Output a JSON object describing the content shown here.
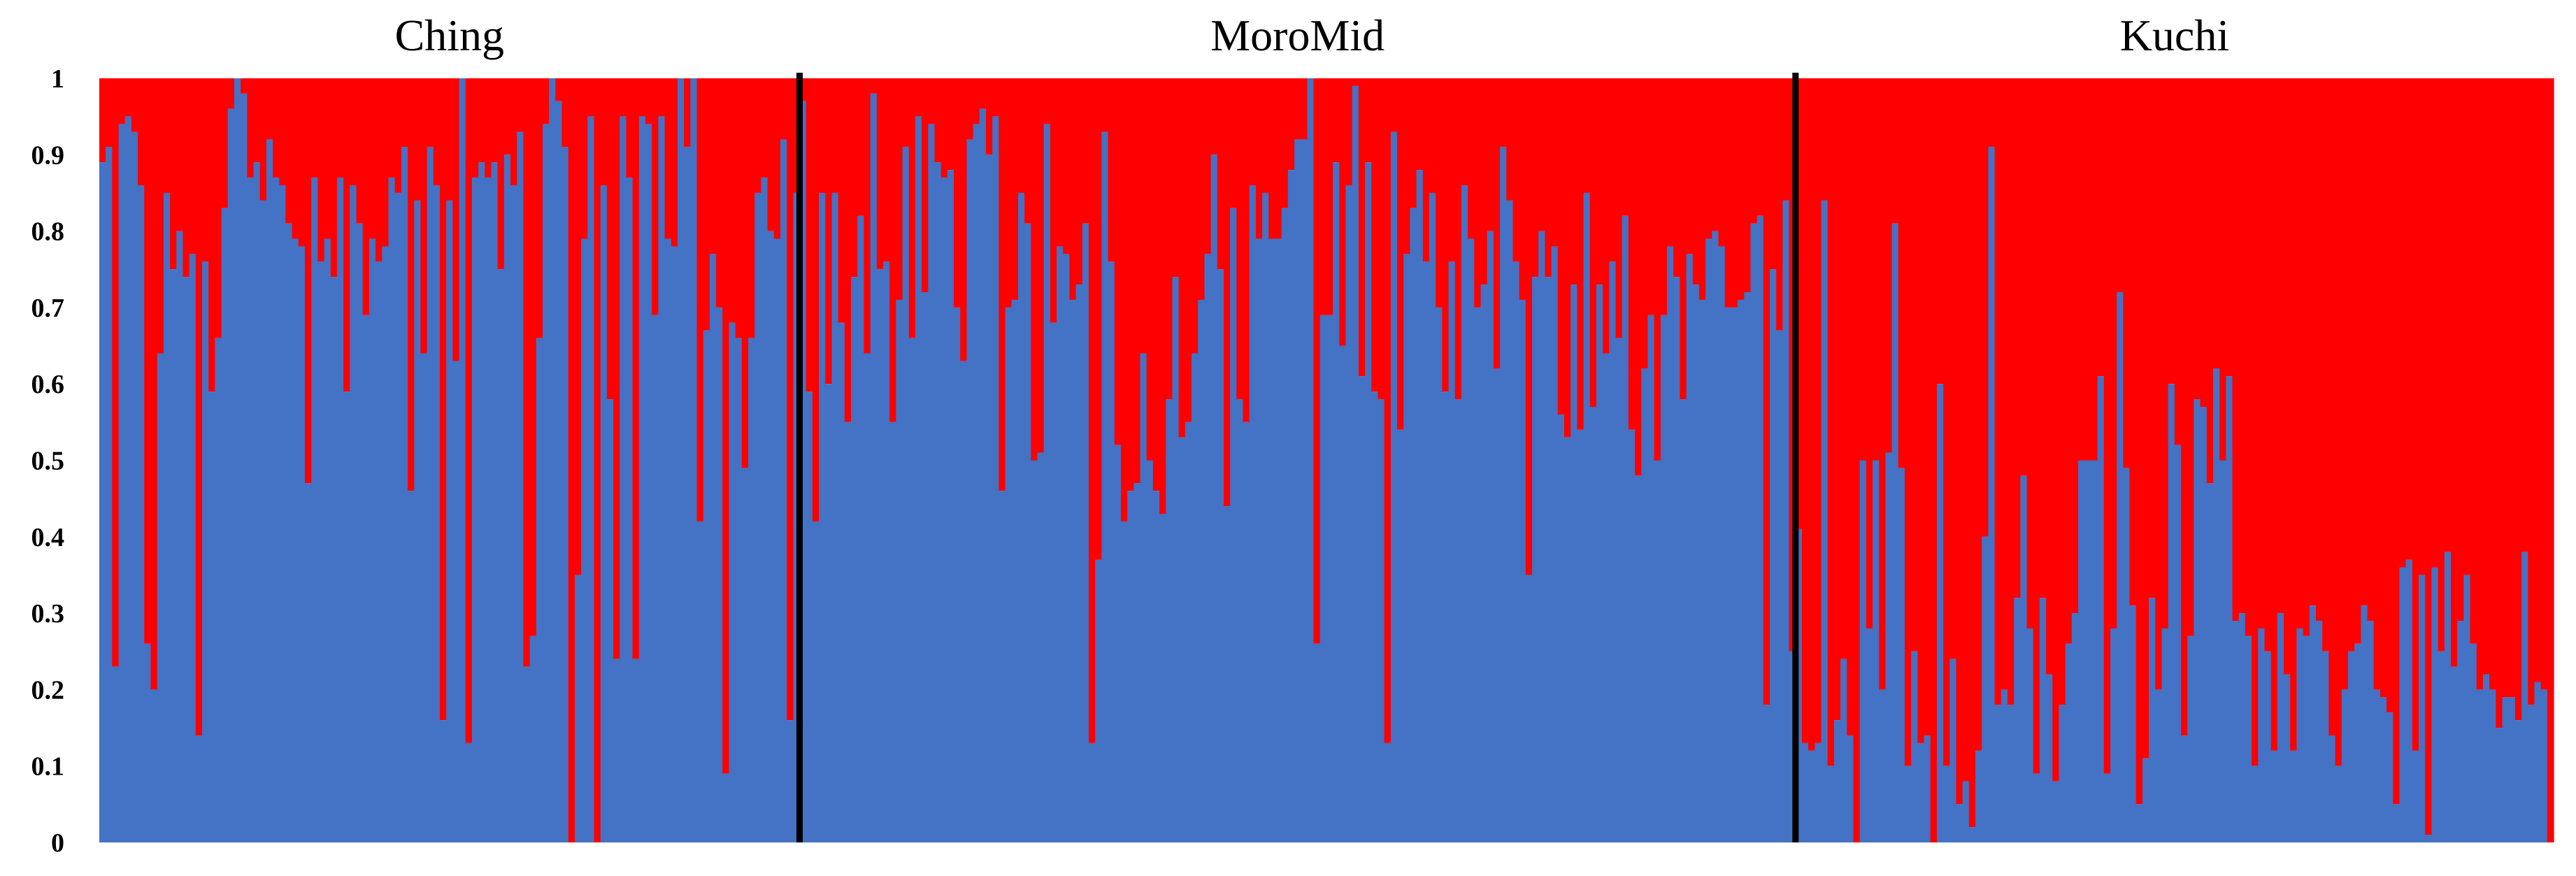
{
  "chart_data": {
    "type": "bar",
    "stacked": true,
    "title": "",
    "xlabel": "",
    "ylabel": "",
    "ylim": [
      0,
      1
    ],
    "y_ticks": [
      {
        "value": 0,
        "label": "0"
      },
      {
        "value": 0.1,
        "label": "0.1"
      },
      {
        "value": 0.2,
        "label": "0.2"
      },
      {
        "value": 0.3,
        "label": "0.3"
      },
      {
        "value": 0.4,
        "label": "0.4"
      },
      {
        "value": 0.5,
        "label": "0.5"
      },
      {
        "value": 0.6,
        "label": "0.6"
      },
      {
        "value": 0.7,
        "label": "0.7"
      },
      {
        "value": 0.8,
        "label": "0.8"
      },
      {
        "value": 0.9,
        "label": "0.9"
      },
      {
        "value": 1,
        "label": "1"
      }
    ],
    "grid": false,
    "legend": "none",
    "colors": {
      "lower": "#4472c4",
      "upper": "#ff0000",
      "separator": "#000000"
    },
    "groups": [
      {
        "name": "Ching",
        "values": [
          0.89,
          0.91,
          0.23,
          0.94,
          0.95,
          0.93,
          0.86,
          0.26,
          0.2,
          0.64,
          0.85,
          0.75,
          0.8,
          0.74,
          0.77,
          0.14,
          0.76,
          0.59,
          0.66,
          0.83,
          0.96,
          1.0,
          0.98,
          0.87,
          0.89,
          0.84,
          0.92,
          0.87,
          0.86,
          0.81,
          0.79,
          0.78,
          0.47,
          0.87,
          0.76,
          0.79,
          0.74,
          0.87,
          0.59,
          0.86,
          0.81,
          0.69,
          0.79,
          0.76,
          0.78,
          0.87,
          0.85,
          0.91,
          0.46,
          0.84,
          0.64,
          0.91,
          0.86,
          0.16,
          0.84,
          0.63,
          1.0,
          0.13,
          0.87,
          0.89,
          0.87,
          0.89,
          0.75,
          0.9,
          0.86,
          0.93,
          0.23,
          0.27,
          0.66,
          0.94,
          1.0,
          0.97,
          0.91,
          0.0,
          0.35,
          0.79,
          0.95,
          0.0,
          0.86,
          0.58,
          0.24,
          0.95,
          0.87,
          0.24,
          0.95,
          0.94,
          0.69,
          0.95,
          0.79,
          0.78,
          1.0,
          0.91,
          1.0,
          0.42,
          0.67,
          0.77,
          0.7,
          0.09,
          0.68,
          0.66,
          0.49,
          0.66,
          0.85,
          0.87,
          0.8,
          0.79,
          0.92,
          0.16,
          0.85
        ]
      },
      {
        "name": "MoroMid",
        "values": [
          0.97,
          0.59,
          0.42,
          0.85,
          0.6,
          0.85,
          0.68,
          0.55,
          0.74,
          0.82,
          0.64,
          0.98,
          0.75,
          0.76,
          0.55,
          0.71,
          0.91,
          0.66,
          0.95,
          0.72,
          0.94,
          0.89,
          0.87,
          0.88,
          0.7,
          0.63,
          0.92,
          0.94,
          0.96,
          0.9,
          0.95,
          0.46,
          0.7,
          0.71,
          0.85,
          0.81,
          0.5,
          0.51,
          0.94,
          0.68,
          0.78,
          0.77,
          0.71,
          0.73,
          0.81,
          0.13,
          0.37,
          0.93,
          0.76,
          0.52,
          0.42,
          0.46,
          0.47,
          0.64,
          0.5,
          0.46,
          0.43,
          0.58,
          0.74,
          0.53,
          0.55,
          0.64,
          0.71,
          0.77,
          0.9,
          0.75,
          0.44,
          0.83,
          0.58,
          0.55,
          0.86,
          0.79,
          0.85,
          0.79,
          0.79,
          0.83,
          0.88,
          0.92,
          0.92,
          1.0,
          0.26,
          0.69,
          0.69,
          0.89,
          0.65,
          0.86,
          0.99,
          0.61,
          0.89,
          0.59,
          0.58,
          0.13,
          0.93,
          0.54,
          0.77,
          0.83,
          0.88,
          0.76,
          0.85,
          0.7,
          0.59,
          0.76,
          0.58,
          0.86,
          0.79,
          0.7,
          0.73,
          0.8,
          0.62,
          0.91,
          0.84,
          0.76,
          0.71,
          0.35,
          0.74,
          0.8,
          0.74,
          0.78,
          0.56,
          0.53,
          0.73,
          0.54,
          0.85,
          0.57,
          0.73,
          0.64,
          0.76,
          0.66,
          0.82,
          0.54,
          0.48,
          0.62,
          0.69,
          0.5,
          0.69,
          0.78,
          0.74,
          0.58,
          0.77,
          0.73,
          0.71,
          0.79,
          0.8,
          0.78,
          0.7,
          0.7,
          0.71,
          0.72,
          0.81,
          0.82,
          0.18,
          0.75,
          0.67,
          0.84,
          0.25
        ]
      },
      {
        "name": "Kuchi",
        "values": [
          0.41,
          0.13,
          0.12,
          0.13,
          0.84,
          0.1,
          0.16,
          0.24,
          0.14,
          0.0,
          0.5,
          0.28,
          0.5,
          0.2,
          0.51,
          0.81,
          0.49,
          0.1,
          0.25,
          0.13,
          0.14,
          0.0,
          0.6,
          0.1,
          0.24,
          0.05,
          0.08,
          0.02,
          0.12,
          0.4,
          0.91,
          0.18,
          0.2,
          0.18,
          0.32,
          0.48,
          0.28,
          0.09,
          0.32,
          0.22,
          0.08,
          0.18,
          0.26,
          0.3,
          0.5,
          0.5,
          0.5,
          0.61,
          0.09,
          0.28,
          0.72,
          0.49,
          0.31,
          0.05,
          0.11,
          0.32,
          0.2,
          0.28,
          0.6,
          0.52,
          0.14,
          0.27,
          0.58,
          0.57,
          0.47,
          0.62,
          0.5,
          0.61,
          0.29,
          0.3,
          0.27,
          0.1,
          0.28,
          0.25,
          0.12,
          0.3,
          0.22,
          0.12,
          0.28,
          0.27,
          0.31,
          0.29,
          0.25,
          0.14,
          0.1,
          0.2,
          0.25,
          0.26,
          0.31,
          0.29,
          0.2,
          0.19,
          0.17,
          0.05,
          0.36,
          0.37,
          0.12,
          0.35,
          0.01,
          0.36,
          0.25,
          0.38,
          0.23,
          0.29,
          0.35,
          0.26,
          0.2,
          0.22,
          0.2,
          0.15,
          0.19,
          0.19,
          0.16,
          0.38,
          0.18,
          0.21,
          0.2,
          0.0
        ]
      }
    ]
  }
}
